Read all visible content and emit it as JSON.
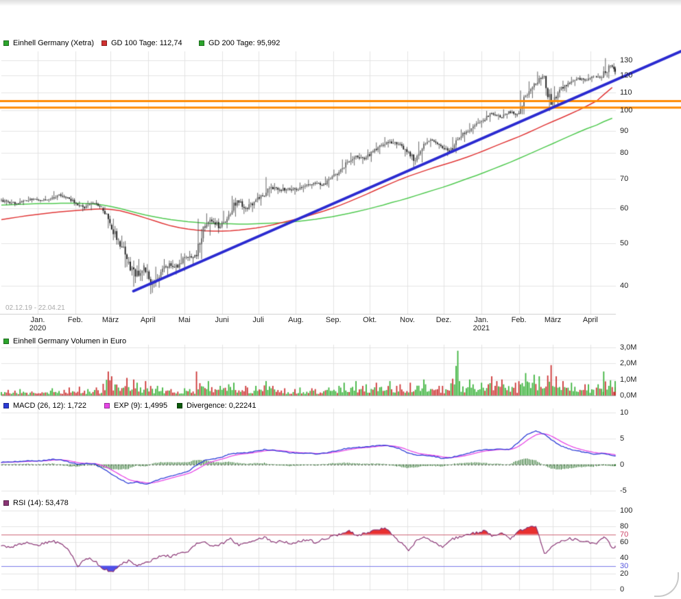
{
  "date_range_label": "02.12.19 - 22.04.21",
  "legend_main": {
    "items": [
      {
        "color": "#2ca52c",
        "label": "Einhell Germany (Xetra)"
      },
      {
        "color": "#d03030",
        "label": "GD 100 Tage: 112,74"
      },
      {
        "color": "#2ca52c",
        "label": "GD 200 Tage: 95,992"
      }
    ]
  },
  "legend_volume": {
    "items": [
      {
        "color": "#2ca52c",
        "label": "Einhell Germany Volumen in Euro"
      }
    ]
  },
  "legend_macd": {
    "items": [
      {
        "color": "#2b3bd6",
        "label": "MACD (26, 12): 1,722"
      },
      {
        "color": "#e645e6",
        "label": "EXP (9): 1,4995"
      },
      {
        "color": "#0a5a0a",
        "label": "Divergence: 0,22241"
      }
    ]
  },
  "legend_rsi": {
    "items": [
      {
        "color": "#8a3575",
        "label": "RSI (14): 53,478"
      }
    ]
  },
  "y_axis_main": [
    {
      "v": 130,
      "label": "130"
    },
    {
      "v": 120,
      "label": "120"
    },
    {
      "v": 110,
      "label": "110"
    },
    {
      "v": 100,
      "label": "100"
    },
    {
      "v": 90,
      "label": "90"
    },
    {
      "v": 80,
      "label": "80"
    },
    {
      "v": 70,
      "label": "70"
    },
    {
      "v": 60,
      "label": "60"
    },
    {
      "v": 50,
      "label": "50"
    },
    {
      "v": 40,
      "label": "40"
    }
  ],
  "y_axis_volume": [
    {
      "v": 3,
      "label": "3,0M"
    },
    {
      "v": 2,
      "label": "2,0M"
    },
    {
      "v": 1,
      "label": "1,0M"
    },
    {
      "v": 0,
      "label": "0,0M"
    }
  ],
  "y_axis_macd": [
    {
      "v": 10,
      "label": "10"
    },
    {
      "v": 5,
      "label": "5"
    },
    {
      "v": 0,
      "label": "0"
    },
    {
      "v": -5,
      "label": "-5"
    }
  ],
  "y_axis_rsi": [
    {
      "v": 100,
      "label": "100"
    },
    {
      "v": 80,
      "label": "80"
    },
    {
      "v": 70,
      "label": "70",
      "color": "#cc4466"
    },
    {
      "v": 60,
      "label": "60"
    },
    {
      "v": 40,
      "label": "40"
    },
    {
      "v": 30,
      "label": "30",
      "color": "#5555dd"
    },
    {
      "v": 20,
      "label": "20"
    },
    {
      "v": 0,
      "label": "0"
    }
  ],
  "x_axis": {
    "months": [
      {
        "iso": "2020-01-01",
        "label": "Jan.",
        "year": "2020"
      },
      {
        "iso": "2020-02-01",
        "label": "Feb."
      },
      {
        "iso": "2020-03-01",
        "label": "März"
      },
      {
        "iso": "2020-04-01",
        "label": "April"
      },
      {
        "iso": "2020-05-01",
        "label": "Mai"
      },
      {
        "iso": "2020-06-01",
        "label": "Juni"
      },
      {
        "iso": "2020-07-01",
        "label": "Juli"
      },
      {
        "iso": "2020-08-01",
        "label": "Aug."
      },
      {
        "iso": "2020-09-01",
        "label": "Sep."
      },
      {
        "iso": "2020-10-01",
        "label": "Okt."
      },
      {
        "iso": "2020-11-01",
        "label": "Nov."
      },
      {
        "iso": "2020-12-01",
        "label": "Dez."
      },
      {
        "iso": "2021-01-01",
        "label": "Jan.",
        "year": "2021"
      },
      {
        "iso": "2021-02-01",
        "label": "Feb."
      },
      {
        "iso": "2021-03-01",
        "label": "März"
      },
      {
        "iso": "2021-04-01",
        "label": "April"
      }
    ]
  },
  "colors": {
    "gd100": "#e03434",
    "gd200": "#4ec94e",
    "trend": "#2b2bd0",
    "hline": "#ff8a00",
    "candle_up": "#6a6a6a",
    "candle_down": "#161616",
    "wick": "#3a3a3a",
    "vol_up": "#3cb33c",
    "vol_down": "#cc3333",
    "macd": "#2b3bd6",
    "signal": "#e645e6",
    "divergence": "#0a5a0a",
    "rsi": "#8a3575",
    "rsi_over": "#e83030",
    "rsi_under": "#5050e8",
    "rsi_upper_line": "#cc6677",
    "rsi_lower_line": "#7a7ae8",
    "grid": "#e3e3e3",
    "axis_text": "#222222"
  },
  "chart_data": {
    "type": "candlestick",
    "title": "Einhell Germany (Xetra)",
    "period_label": "02.12.19 - 22.04.21",
    "start_iso": "2019-12-02",
    "end_iso": "2021-04-22",
    "note": "values estimated from chart; weekly bars approximating the daily series",
    "x_dates_weekly": [
      "2019-12-02",
      "2019-12-09",
      "2019-12-16",
      "2019-12-23",
      "2019-12-30",
      "2020-01-06",
      "2020-01-13",
      "2020-01-20",
      "2020-01-27",
      "2020-02-03",
      "2020-02-10",
      "2020-02-17",
      "2020-02-24",
      "2020-03-02",
      "2020-03-09",
      "2020-03-16",
      "2020-03-23",
      "2020-03-30",
      "2020-04-06",
      "2020-04-13",
      "2020-04-20",
      "2020-04-27",
      "2020-05-04",
      "2020-05-11",
      "2020-05-18",
      "2020-05-25",
      "2020-06-01",
      "2020-06-08",
      "2020-06-15",
      "2020-06-22",
      "2020-06-29",
      "2020-07-06",
      "2020-07-13",
      "2020-07-20",
      "2020-07-27",
      "2020-08-03",
      "2020-08-10",
      "2020-08-17",
      "2020-08-24",
      "2020-08-31",
      "2020-09-07",
      "2020-09-14",
      "2020-09-21",
      "2020-09-28",
      "2020-10-05",
      "2020-10-12",
      "2020-10-19",
      "2020-10-26",
      "2020-11-02",
      "2020-11-09",
      "2020-11-16",
      "2020-11-23",
      "2020-11-30",
      "2020-12-07",
      "2020-12-14",
      "2020-12-21",
      "2020-12-28",
      "2021-01-04",
      "2021-01-11",
      "2021-01-18",
      "2021-01-25",
      "2021-02-01",
      "2021-02-08",
      "2021-02-15",
      "2021-02-22",
      "2021-03-01",
      "2021-03-08",
      "2021-03-15",
      "2021-03-22",
      "2021-03-29",
      "2021-04-06",
      "2021-04-12",
      "2021-04-19"
    ],
    "price_panel": {
      "scale": "log",
      "ylim": [
        34.5,
        136
      ],
      "candles_ohlc": [
        [
          62.5,
          63.4,
          61.0,
          62.0
        ],
        [
          62.0,
          62.8,
          60.6,
          61.5
        ],
        [
          61.5,
          63.2,
          61.0,
          62.5
        ],
        [
          62.5,
          63.8,
          61.8,
          63.0
        ],
        [
          63.0,
          63.6,
          61.8,
          62.5
        ],
        [
          62.5,
          64.0,
          61.9,
          63.0
        ],
        [
          63.0,
          65.6,
          62.6,
          64.5
        ],
        [
          64.5,
          65.2,
          62.8,
          63.5
        ],
        [
          63.5,
          64.0,
          60.8,
          61.5
        ],
        [
          61.5,
          62.2,
          59.0,
          60.0
        ],
        [
          60.0,
          62.4,
          59.4,
          61.5
        ],
        [
          61.5,
          62.6,
          59.8,
          60.5
        ],
        [
          60.0,
          60.5,
          54.0,
          55.5
        ],
        [
          55.0,
          56.8,
          49.6,
          51.0
        ],
        [
          50.5,
          52.0,
          44.0,
          46.0
        ],
        [
          45.0,
          46.5,
          39.8,
          42.0
        ],
        [
          42.0,
          46.0,
          41.0,
          44.5
        ],
        [
          44.0,
          44.8,
          38.3,
          40.5
        ],
        [
          40.5,
          44.2,
          39.6,
          43.0
        ],
        [
          43.0,
          46.0,
          42.0,
          45.0
        ],
        [
          45.0,
          45.8,
          42.4,
          44.0
        ],
        [
          44.0,
          47.4,
          43.2,
          46.5
        ],
        [
          46.5,
          48.0,
          44.6,
          47.0
        ],
        [
          47.0,
          56.8,
          46.0,
          54.5
        ],
        [
          54.5,
          58.4,
          52.0,
          56.0
        ],
        [
          56.0,
          57.0,
          52.6,
          54.5
        ],
        [
          54.5,
          59.2,
          54.0,
          58.0
        ],
        [
          58.0,
          64.0,
          57.4,
          62.5
        ],
        [
          62.5,
          63.0,
          58.2,
          60.0
        ],
        [
          60.0,
          63.0,
          58.8,
          62.0
        ],
        [
          62.0,
          65.0,
          60.8,
          64.0
        ],
        [
          64.0,
          70.6,
          63.6,
          67.0
        ],
        [
          67.0,
          68.4,
          64.6,
          66.0
        ],
        [
          66.0,
          68.0,
          64.8,
          66.5
        ],
        [
          66.5,
          67.6,
          64.4,
          66.0
        ],
        [
          66.0,
          68.6,
          65.2,
          67.5
        ],
        [
          67.5,
          69.6,
          66.4,
          68.5
        ],
        [
          68.5,
          69.2,
          66.2,
          67.5
        ],
        [
          67.5,
          70.8,
          66.8,
          70.0
        ],
        [
          70.0,
          73.4,
          69.2,
          72.5
        ],
        [
          72.5,
          77.4,
          71.8,
          76.5
        ],
        [
          76.5,
          80.2,
          75.0,
          79.0
        ],
        [
          79.0,
          80.0,
          75.6,
          77.5
        ],
        [
          77.5,
          81.6,
          76.4,
          80.5
        ],
        [
          80.5,
          84.6,
          79.6,
          83.5
        ],
        [
          83.5,
          87.0,
          82.4,
          85.0
        ],
        [
          85.0,
          86.2,
          82.0,
          84.0
        ],
        [
          84.0,
          84.8,
          78.6,
          80.5
        ],
        [
          80.5,
          81.0,
          74.0,
          77.0
        ],
        [
          77.0,
          85.0,
          76.2,
          84.0
        ],
        [
          84.0,
          86.6,
          82.6,
          85.5
        ],
        [
          85.5,
          86.0,
          81.8,
          83.0
        ],
        [
          83.0,
          83.6,
          78.8,
          80.5
        ],
        [
          80.5,
          87.0,
          80.0,
          86.0
        ],
        [
          86.0,
          90.6,
          84.8,
          89.5
        ],
        [
          89.5,
          93.6,
          88.4,
          92.5
        ],
        [
          92.5,
          96.0,
          91.4,
          95.0
        ],
        [
          95.0,
          99.8,
          94.2,
          98.5
        ],
        [
          98.5,
          99.4,
          95.2,
          96.5
        ],
        [
          96.5,
          100.6,
          95.8,
          99.5
        ],
        [
          99.5,
          100.2,
          96.2,
          97.5
        ],
        [
          98.5,
          111.0,
          98.0,
          108.0
        ],
        [
          108.0,
          116.4,
          106.6,
          115.0
        ],
        [
          115.0,
          122.5,
          113.8,
          119.5
        ],
        [
          119.5,
          120.0,
          99.6,
          103.0
        ],
        [
          103.0,
          113.5,
          102.0,
          111.5
        ],
        [
          111.5,
          116.8,
          110.0,
          115.5
        ],
        [
          115.5,
          119.2,
          113.6,
          118.0
        ],
        [
          118.0,
          120.0,
          115.0,
          117.0
        ],
        [
          117.0,
          121.0,
          116.0,
          119.5
        ],
        [
          119.5,
          121.4,
          116.8,
          119.0
        ],
        [
          119.0,
          131.4,
          118.2,
          126.5
        ],
        [
          126.5,
          128.0,
          120.4,
          122.5
        ]
      ],
      "gd100_label": "GD 100 Tage: 112,74",
      "gd100": [
        56.5,
        56.9,
        57.3,
        57.7,
        58.0,
        58.3,
        58.6,
        58.9,
        59.1,
        59.3,
        59.5,
        59.7,
        59.8,
        59.6,
        59.2,
        58.5,
        57.8,
        57.0,
        56.2,
        55.4,
        54.7,
        54.2,
        53.8,
        53.5,
        53.3,
        53.2,
        53.2,
        53.3,
        53.5,
        53.8,
        54.1,
        54.5,
        55.0,
        55.6,
        56.2,
        56.8,
        57.5,
        58.3,
        59.1,
        60.0,
        61.0,
        62.1,
        63.3,
        64.5,
        65.8,
        67.1,
        68.4,
        69.7,
        70.9,
        72.0,
        73.1,
        74.2,
        75.2,
        76.2,
        77.3,
        78.5,
        79.8,
        81.2,
        82.7,
        84.2,
        85.7,
        87.2,
        88.9,
        90.7,
        92.6,
        94.4,
        96.2,
        98.1,
        100.1,
        102.3,
        105.0,
        108.6,
        112.74
      ],
      "gd200_label": "GD 200 Tage: 95,992",
      "gd200": [
        61.0,
        61.1,
        61.2,
        61.3,
        61.4,
        61.5,
        61.5,
        61.6,
        61.6,
        61.6,
        61.5,
        61.3,
        61.0,
        60.5,
        59.9,
        59.2,
        58.5,
        57.9,
        57.4,
        56.9,
        56.5,
        56.2,
        55.9,
        55.7,
        55.5,
        55.4,
        55.3,
        55.3,
        55.2,
        55.2,
        55.3,
        55.4,
        55.5,
        55.6,
        55.8,
        56.0,
        56.3,
        56.6,
        57.0,
        57.4,
        57.9,
        58.4,
        59.0,
        59.6,
        60.3,
        61.0,
        61.8,
        62.5,
        63.3,
        64.2,
        65.1,
        66.0,
        66.9,
        67.9,
        69.0,
        70.1,
        71.2,
        72.4,
        73.7,
        75.0,
        76.3,
        77.8,
        79.3,
        80.9,
        82.5,
        84.1,
        85.8,
        87.5,
        89.2,
        90.9,
        92.6,
        94.3,
        95.992
      ],
      "trendline": {
        "points": [
          {
            "date": "2020-03-20",
            "price": 38.9
          },
          {
            "date": "2021-04-22",
            "price": 117.3
          }
        ],
        "extend_right": true,
        "color": "#2b2bd0",
        "width": 4
      },
      "hlines": [
        {
          "price": 105.0,
          "color": "#ff8a00",
          "width": 3
        },
        {
          "price": 101.5,
          "color": "#ff8a00",
          "width": 3
        }
      ]
    },
    "volume_panel": {
      "title": "Einhell Germany Volumen in Euro",
      "unit": "EUR millions",
      "ylim": [
        0,
        3.2
      ],
      "values": [
        0.35,
        0.3,
        0.4,
        0.25,
        0.2,
        0.3,
        0.45,
        0.35,
        0.5,
        0.55,
        0.4,
        0.5,
        1.5,
        1.2,
        1.1,
        1.0,
        0.8,
        0.9,
        0.6,
        0.5,
        0.4,
        0.45,
        0.4,
        1.5,
        0.9,
        0.6,
        0.7,
        0.8,
        0.6,
        0.5,
        0.6,
        0.9,
        0.6,
        0.45,
        0.4,
        0.5,
        0.45,
        0.4,
        0.5,
        0.6,
        0.8,
        0.9,
        0.6,
        0.7,
        0.8,
        0.9,
        0.6,
        0.7,
        0.8,
        1.0,
        0.7,
        0.6,
        0.6,
        2.8,
        0.9,
        1.0,
        0.8,
        1.2,
        0.9,
        1.0,
        0.8,
        1.4,
        1.3,
        1.2,
        1.9,
        1.2,
        0.9,
        0.8,
        0.7,
        0.7,
        0.7,
        1.5,
        0.9
      ]
    },
    "macd_panel": {
      "macd_label": "MACD (26, 12): 1,722",
      "exp_label": "EXP (9): 1,4995",
      "divergence_label": "Divergence: 0,22241",
      "ylim": [
        -5.5,
        10.5
      ],
      "macd": [
        0.5,
        0.5,
        0.6,
        0.7,
        0.7,
        0.8,
        1.0,
        0.9,
        0.5,
        0.1,
        0.2,
        0.1,
        -0.8,
        -1.8,
        -2.8,
        -3.6,
        -3.3,
        -3.8,
        -3.2,
        -2.6,
        -2.2,
        -1.7,
        -1.3,
        -0.1,
        0.8,
        1.1,
        1.4,
        2.1,
        2.2,
        2.3,
        2.6,
        2.9,
        2.8,
        2.6,
        2.3,
        2.2,
        2.2,
        2.1,
        2.2,
        2.5,
        2.9,
        3.2,
        3.3,
        3.4,
        3.6,
        3.7,
        3.5,
        3.0,
        2.2,
        1.8,
        1.8,
        1.6,
        1.2,
        1.4,
        1.8,
        2.2,
        2.6,
        2.9,
        2.9,
        3.0,
        3.0,
        4.4,
        5.8,
        6.5,
        5.8,
        4.6,
        3.6,
        3.0,
        2.6,
        2.3,
        2.0,
        2.2,
        1.722
      ]
    },
    "rsi_panel": {
      "rsi_label": "RSI (14): 53,478",
      "ylim": [
        0,
        100
      ],
      "levels": {
        "upper": 70,
        "lower": 30
      },
      "rsi": [
        55,
        53,
        57,
        59,
        56,
        58,
        62,
        57,
        50,
        29,
        40,
        36,
        26,
        22,
        32,
        36,
        31,
        34,
        38,
        44,
        41,
        47,
        48,
        58,
        60,
        54,
        58,
        64,
        56,
        60,
        63,
        66,
        60,
        61,
        58,
        61,
        63,
        60,
        64,
        67,
        71,
        74,
        68,
        72,
        75,
        78,
        71,
        60,
        50,
        63,
        66,
        60,
        54,
        63,
        67,
        70,
        72,
        74,
        67,
        71,
        65,
        74,
        78,
        80,
        45,
        55,
        62,
        65,
        62,
        60,
        58,
        68,
        53.478
      ]
    }
  }
}
